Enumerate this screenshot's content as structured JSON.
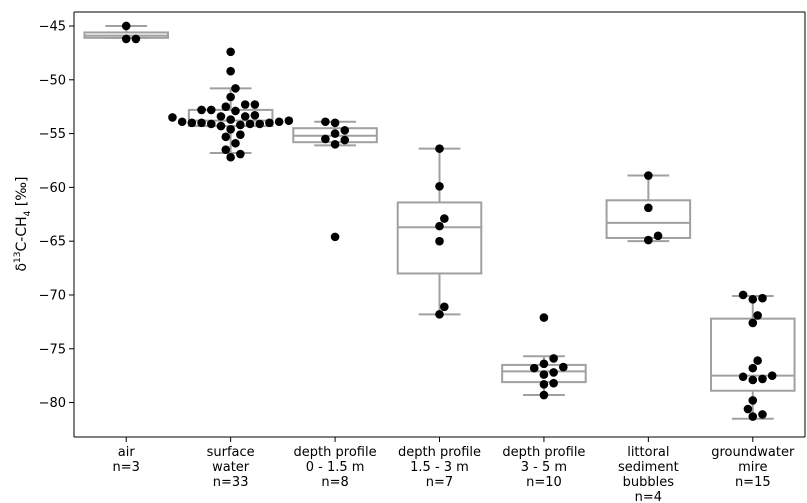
{
  "chart_data": {
    "type": "box",
    "title": "",
    "xlabel": "",
    "ylabel": "δ13C-CH4 [‰]",
    "ylabel_parts": {
      "delta": "δ",
      "superscript": "13",
      "base": "C-CH",
      "subscript": "4",
      "unit": " [‰]"
    },
    "ylim": [
      -83.2,
      -43.7
    ],
    "yticks": [
      -45,
      -50,
      -55,
      -60,
      -65,
      -70,
      -75,
      -80
    ],
    "ytick_labels": [
      "−45",
      "−50",
      "−55",
      "−60",
      "−65",
      "−70",
      "−75",
      "−80"
    ],
    "box_color": "#a0a0a0",
    "point_color": "#000000",
    "categories": [
      {
        "label_lines": [
          "air",
          "n=3"
        ],
        "box": {
          "q1": -46.1,
          "median": -45.9,
          "q3": -45.6,
          "whisker_low": -46.1,
          "whisker_high": -45.0
        },
        "points": [
          -45.0,
          -46.2,
          -46.2
        ]
      },
      {
        "label_lines": [
          "surface",
          "water",
          "n=33"
        ],
        "box": {
          "q1": -54.3,
          "median": -53.8,
          "q3": -52.8,
          "whisker_low": -56.8,
          "whisker_high": -50.8
        },
        "points": [
          -47.4,
          -49.2,
          -50.8,
          -51.6,
          -52.3,
          -52.3,
          -52.5,
          -52.8,
          -52.8,
          -52.9,
          -53.3,
          -53.4,
          -53.4,
          -53.5,
          -53.7,
          -53.8,
          -53.9,
          -53.9,
          -54.0,
          -54.0,
          -54.0,
          -54.1,
          -54.1,
          -54.1,
          -54.2,
          -54.3,
          -54.6,
          -55.1,
          -55.3,
          -55.9,
          -56.5,
          -56.9,
          -57.2
        ]
      },
      {
        "label_lines": [
          "depth profile",
          "0 - 1.5 m",
          "n=8"
        ],
        "box": {
          "q1": -55.8,
          "median": -55.2,
          "q3": -54.5,
          "whisker_low": -56.1,
          "whisker_high": -53.9
        },
        "points": [
          -53.9,
          -54.0,
          -54.7,
          -55.0,
          -55.5,
          -55.6,
          -56.0,
          -64.6
        ]
      },
      {
        "label_lines": [
          "depth profile",
          "1.5 - 3 m",
          "n=7"
        ],
        "box": {
          "q1": -68.0,
          "median": -63.7,
          "q3": -61.4,
          "whisker_low": -71.8,
          "whisker_high": -56.4
        },
        "points": [
          -56.4,
          -59.9,
          -62.9,
          -63.6,
          -65.0,
          -71.1,
          -71.8
        ]
      },
      {
        "label_lines": [
          "depth profile",
          "3 - 5 m",
          "n=10"
        ],
        "box": {
          "q1": -78.1,
          "median": -77.1,
          "q3": -76.5,
          "whisker_low": -79.3,
          "whisker_high": -75.7
        },
        "points": [
          -72.1,
          -75.9,
          -76.4,
          -76.7,
          -76.8,
          -77.2,
          -77.4,
          -78.2,
          -78.3,
          -79.3
        ]
      },
      {
        "label_lines": [
          "littoral",
          "sediment",
          "bubbles",
          "n=4"
        ],
        "box": {
          "q1": -64.7,
          "median": -63.3,
          "q3": -61.2,
          "whisker_low": -65.0,
          "whisker_high": -58.9
        },
        "points": [
          -58.9,
          -61.9,
          -64.5,
          -64.9
        ]
      },
      {
        "label_lines": [
          "groundwater",
          "mire",
          "n=15"
        ],
        "box": {
          "q1": -78.9,
          "median": -77.5,
          "q3": -72.2,
          "whisker_low": -81.5,
          "whisker_high": -70.1
        },
        "points": [
          -70.0,
          -70.3,
          -70.4,
          -71.9,
          -72.6,
          -76.1,
          -76.8,
          -77.5,
          -77.6,
          -77.8,
          -77.9,
          -79.8,
          -80.6,
          -81.1,
          -81.3
        ]
      }
    ]
  }
}
